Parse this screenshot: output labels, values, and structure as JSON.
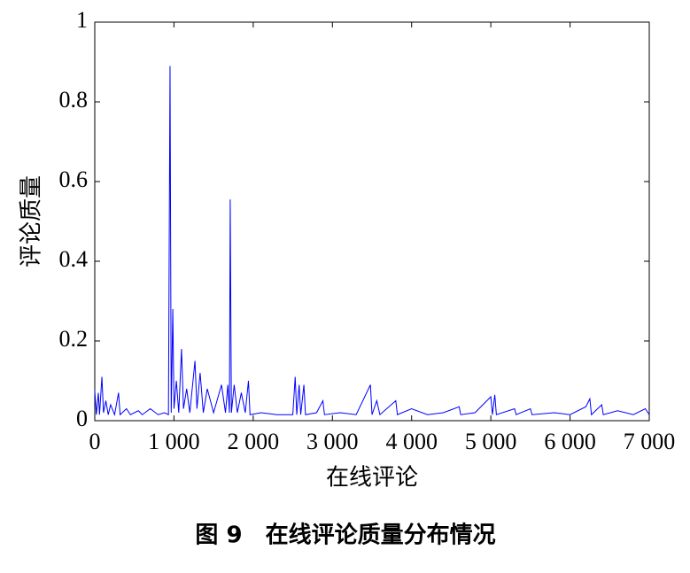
{
  "chart_data": {
    "type": "line",
    "caption": "图 9　在线评论质量分布情况",
    "xlabel": "在线评论",
    "ylabel": "评论质量",
    "color": "#0000ff",
    "x": [
      0,
      20,
      45,
      60,
      90,
      110,
      140,
      170,
      200,
      250,
      300,
      320,
      400,
      450,
      550,
      600,
      700,
      800,
      880,
      930,
      950,
      965,
      985,
      1000,
      1030,
      1060,
      1095,
      1120,
      1160,
      1200,
      1265,
      1290,
      1330,
      1370,
      1420,
      1500,
      1600,
      1650,
      1680,
      1700,
      1710,
      1725,
      1760,
      1800,
      1850,
      1900,
      1940,
      1960,
      2100,
      2300,
      2500,
      2530,
      2550,
      2580,
      2600,
      2640,
      2660,
      2800,
      2880,
      2900,
      3100,
      3300,
      3480,
      3500,
      3560,
      3600,
      3800,
      3820,
      4000,
      4200,
      4400,
      4600,
      4620,
      4800,
      5000,
      5020,
      5050,
      5070,
      5300,
      5320,
      5500,
      5520,
      5800,
      6000,
      6200,
      6250,
      6270,
      6400,
      6420,
      6600,
      6800,
      6950,
      7000
    ],
    "values": [
      0.075,
      0.015,
      0.07,
      0.015,
      0.11,
      0.02,
      0.05,
      0.015,
      0.04,
      0.015,
      0.07,
      0.015,
      0.03,
      0.015,
      0.025,
      0.015,
      0.03,
      0.015,
      0.02,
      0.015,
      0.89,
      0.02,
      0.28,
      0.03,
      0.1,
      0.02,
      0.18,
      0.03,
      0.08,
      0.02,
      0.15,
      0.03,
      0.12,
      0.02,
      0.08,
      0.02,
      0.09,
      0.02,
      0.09,
      0.02,
      0.555,
      0.02,
      0.09,
      0.02,
      0.07,
      0.02,
      0.1,
      0.015,
      0.02,
      0.015,
      0.015,
      0.11,
      0.015,
      0.09,
      0.015,
      0.09,
      0.015,
      0.02,
      0.05,
      0.015,
      0.02,
      0.015,
      0.09,
      0.015,
      0.05,
      0.015,
      0.05,
      0.015,
      0.03,
      0.015,
      0.02,
      0.035,
      0.015,
      0.02,
      0.06,
      0.015,
      0.065,
      0.015,
      0.03,
      0.015,
      0.03,
      0.015,
      0.02,
      0.015,
      0.035,
      0.055,
      0.015,
      0.04,
      0.015,
      0.025,
      0.015,
      0.03,
      0.015
    ],
    "xlim": [
      0,
      7000
    ],
    "xticks": [
      0,
      {
        "value": 1000,
        "label": "1 000"
      },
      {
        "value": 2000,
        "label": "2 000"
      },
      {
        "value": 3000,
        "label": "3 000"
      },
      {
        "value": 4000,
        "label": "4 000"
      },
      {
        "value": 5000,
        "label": "5 000"
      },
      {
        "value": 6000,
        "label": "6 000"
      },
      {
        "value": 7000,
        "label": "7 000"
      }
    ],
    "ylim": [
      0,
      1
    ],
    "yticks": [
      0,
      0.2,
      0.4,
      0.6,
      0.8,
      1
    ]
  }
}
